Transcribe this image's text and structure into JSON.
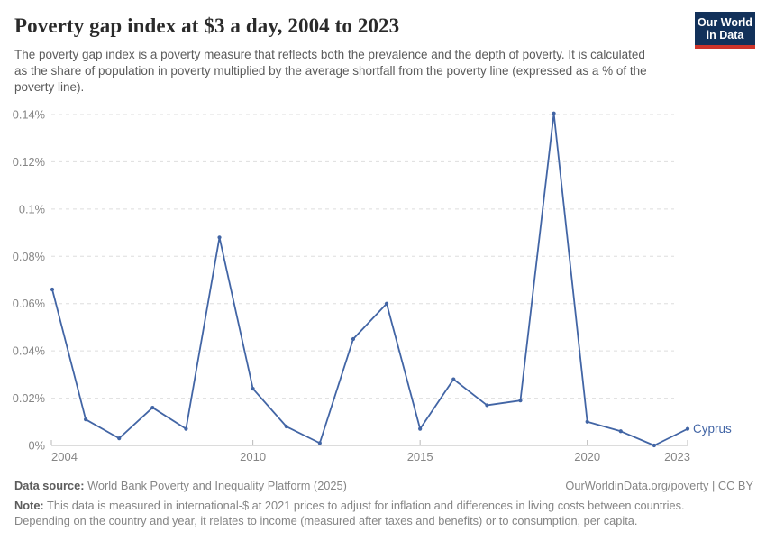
{
  "header": {
    "title": "Poverty gap index at $3 a day, 2004 to 2023",
    "subtitle": "The poverty gap index is a poverty measure that reflects both the prevalence and the depth of poverty. It is calculated as the share of population in poverty multiplied by the average shortfall from the poverty line (expressed as a % of the poverty line).",
    "logo": {
      "line1": "Our World",
      "line2": "in Data",
      "bg_color": "#12315A",
      "bar_color": "#CE342A"
    }
  },
  "chart_data": {
    "type": "line",
    "title": "Poverty gap index at $3 a day, 2004 to 2023",
    "xlabel": "",
    "ylabel": "",
    "unit": "%",
    "x": [
      2004,
      2005,
      2006,
      2007,
      2008,
      2009,
      2010,
      2011,
      2012,
      2013,
      2014,
      2015,
      2016,
      2017,
      2018,
      2019,
      2020,
      2021,
      2022,
      2023
    ],
    "series": [
      {
        "name": "Cyprus",
        "color": "#4265A5",
        "values": [
          0.066,
          0.011,
          0.003,
          0.016,
          0.007,
          0.088,
          0.024,
          0.008,
          0.001,
          0.045,
          0.06,
          0.007,
          0.028,
          0.017,
          0.019,
          0.1405,
          0.01,
          0.006,
          0.0,
          0.007
        ]
      }
    ],
    "xlim": [
      2004,
      2023
    ],
    "ylim": [
      0,
      0.14
    ],
    "yticks": [
      {
        "v": 0,
        "label": "0%"
      },
      {
        "v": 0.02,
        "label": "0.02%"
      },
      {
        "v": 0.04,
        "label": "0.04%"
      },
      {
        "v": 0.06,
        "label": "0.06%"
      },
      {
        "v": 0.08,
        "label": "0.08%"
      },
      {
        "v": 0.1,
        "label": "0.1%"
      },
      {
        "v": 0.12,
        "label": "0.12%"
      },
      {
        "v": 0.14,
        "label": "0.14%"
      }
    ],
    "xticks": [
      {
        "v": 2004,
        "label": "2004",
        "anchor": "start"
      },
      {
        "v": 2010,
        "label": "2010",
        "anchor": "middle"
      },
      {
        "v": 2015,
        "label": "2015",
        "anchor": "middle"
      },
      {
        "v": 2020,
        "label": "2020",
        "anchor": "middle"
      },
      {
        "v": 2023,
        "label": "2023",
        "anchor": "end"
      }
    ],
    "grid": "horizontal-dashed",
    "legend_position": "end-of-line",
    "colors": {
      "grid": "#dedede",
      "axis": "#b9b9b9",
      "tick_text": "#858585"
    }
  },
  "footer": {
    "source_label": "Data source:",
    "source_value": " World Bank Poverty and Inequality Platform (2025)",
    "rights": "OurWorldinData.org/poverty | CC BY",
    "note_label": "Note:",
    "note_value": " This data is measured in international-$ at 2021 prices to adjust for inflation and differences in living costs between countries. Depending on the country and year, it relates to income (measured after taxes and benefits) or to consumption, per capita."
  }
}
